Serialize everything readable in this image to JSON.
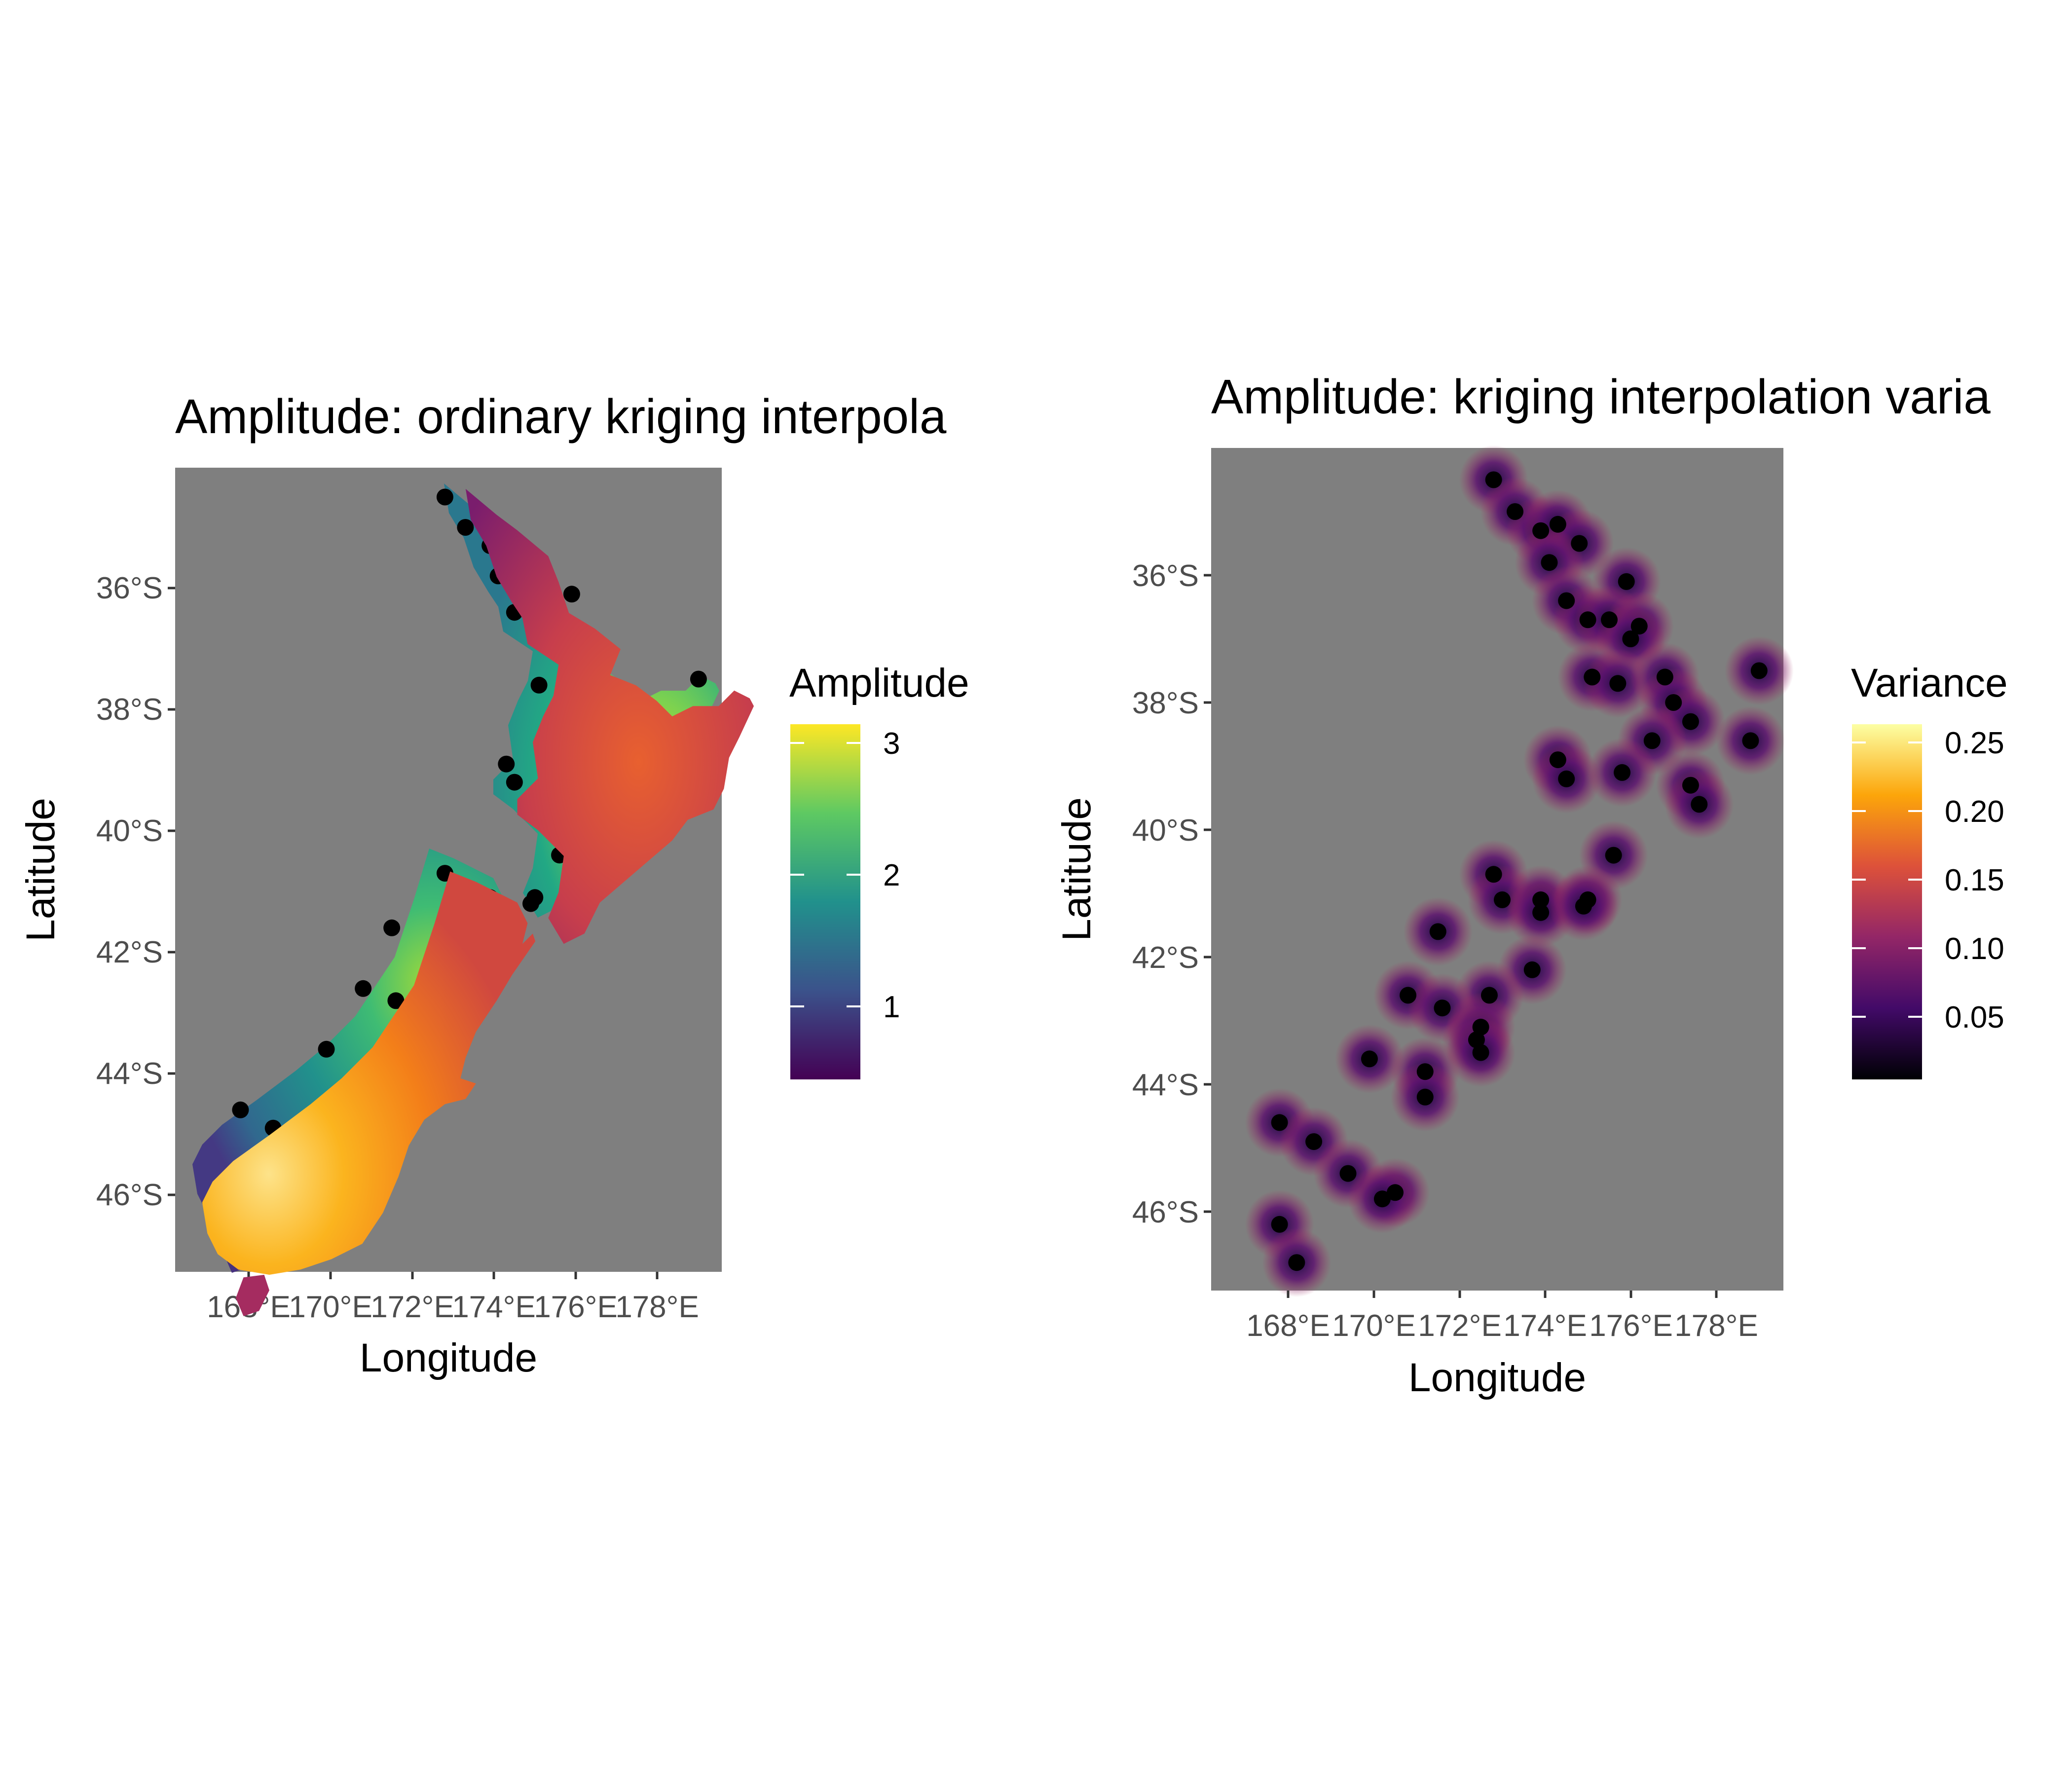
{
  "figure": {
    "panels": [
      {
        "title": "Amplitude: ordinary kriging interpola",
        "xlabel": "Longitude",
        "ylabel": "Latitude",
        "x_ticks": [
          "168°E",
          "170°E",
          "172°E",
          "174°E",
          "176°E",
          "178°E"
        ],
        "y_ticks": [
          "36°S",
          "38°S",
          "40°S",
          "42°S",
          "44°S",
          "46°S"
        ],
        "legend": {
          "title": "Amplitude",
          "labels": [
            "3",
            "2",
            "1"
          ],
          "colormap": "viridis",
          "colors": [
            "#440154",
            "#3b528b",
            "#21918c",
            "#5ec962",
            "#fde725"
          ]
        },
        "background_color": "#7f7f7f"
      },
      {
        "title": "Amplitude: kriging interpolation varia",
        "xlabel": "Longitude",
        "ylabel": "Latitude",
        "x_ticks": [
          "168°E",
          "170°E",
          "172°E",
          "174°E",
          "176°E",
          "178°E"
        ],
        "y_ticks": [
          "36°S",
          "38°S",
          "40°S",
          "42°S",
          "44°S",
          "46°S"
        ],
        "legend": {
          "title": "Variance",
          "labels": [
            "0.25",
            "0.20",
            "0.15",
            "0.10",
            "0.05"
          ],
          "colormap": "inferno",
          "colors": [
            "#000004",
            "#420a68",
            "#932667",
            "#dd513a",
            "#fca50a",
            "#fcffa4"
          ]
        },
        "background_color": "#7f7f7f"
      }
    ],
    "chart_data": [
      {
        "type": "heatmap",
        "title": "Amplitude: ordinary kriging interpola",
        "xlabel": "Longitude",
        "ylabel": "Latitude",
        "xlim": [
          166.5,
          179.5
        ],
        "ylim": [
          -47.3,
          -34.0
        ],
        "value_range": [
          0.5,
          3.2
        ],
        "sample_points": [
          {
            "lon": 172.8,
            "lat": -34.5
          },
          {
            "lon": 173.3,
            "lat": -35.0
          },
          {
            "lon": 173.9,
            "lat": -35.3
          },
          {
            "lon": 174.3,
            "lat": -35.2
          },
          {
            "lon": 174.8,
            "lat": -35.5
          },
          {
            "lon": 174.1,
            "lat": -35.8
          },
          {
            "lon": 175.9,
            "lat": -36.1
          },
          {
            "lon": 174.5,
            "lat": -36.4
          },
          {
            "lon": 175.0,
            "lat": -36.7
          },
          {
            "lon": 175.5,
            "lat": -36.7
          },
          {
            "lon": 176.2,
            "lat": -36.8
          },
          {
            "lon": 176.0,
            "lat": -37.0
          },
          {
            "lon": 175.1,
            "lat": -37.6
          },
          {
            "lon": 175.7,
            "lat": -37.7
          },
          {
            "lon": 176.8,
            "lat": -37.6
          },
          {
            "lon": 177.0,
            "lat": -38.0
          },
          {
            "lon": 179.0,
            "lat": -37.5
          },
          {
            "lon": 177.4,
            "lat": -38.3
          },
          {
            "lon": 176.5,
            "lat": -38.6
          },
          {
            "lon": 178.8,
            "lat": -38.6
          },
          {
            "lon": 174.3,
            "lat": -38.9
          },
          {
            "lon": 174.5,
            "lat": -39.2
          },
          {
            "lon": 175.8,
            "lat": -39.1
          },
          {
            "lon": 177.4,
            "lat": -39.3
          },
          {
            "lon": 177.6,
            "lat": -39.6
          },
          {
            "lon": 175.6,
            "lat": -40.4
          },
          {
            "lon": 172.8,
            "lat": -40.7
          },
          {
            "lon": 173.0,
            "lat": -41.1
          },
          {
            "lon": 173.9,
            "lat": -41.1
          },
          {
            "lon": 173.9,
            "lat": -41.3
          },
          {
            "lon": 175.0,
            "lat": -41.1
          },
          {
            "lon": 174.9,
            "lat": -41.2
          },
          {
            "lon": 171.5,
            "lat": -41.6
          },
          {
            "lon": 173.7,
            "lat": -42.2
          },
          {
            "lon": 170.8,
            "lat": -42.6
          },
          {
            "lon": 172.7,
            "lat": -42.6
          },
          {
            "lon": 171.6,
            "lat": -42.8
          },
          {
            "lon": 172.5,
            "lat": -43.1
          },
          {
            "lon": 172.4,
            "lat": -43.3
          },
          {
            "lon": 172.5,
            "lat": -43.5
          },
          {
            "lon": 169.9,
            "lat": -43.6
          },
          {
            "lon": 171.2,
            "lat": -43.8
          },
          {
            "lon": 171.2,
            "lat": -44.2
          },
          {
            "lon": 167.8,
            "lat": -44.6
          },
          {
            "lon": 168.6,
            "lat": -44.9
          },
          {
            "lon": 169.4,
            "lat": -45.4
          },
          {
            "lon": 170.5,
            "lat": -45.7
          },
          {
            "lon": 170.2,
            "lat": -45.8
          },
          {
            "lon": 167.8,
            "lat": -46.2
          },
          {
            "lon": 168.2,
            "lat": -46.8
          }
        ]
      },
      {
        "type": "heatmap",
        "title": "Amplitude: kriging interpolation varia",
        "xlabel": "Longitude",
        "ylabel": "Latitude",
        "xlim": [
          166.5,
          179.5
        ],
        "ylim": [
          -47.3,
          -34.0
        ],
        "value_range": [
          0.0,
          0.27
        ],
        "sample_points": "same as panel 1"
      }
    ]
  }
}
